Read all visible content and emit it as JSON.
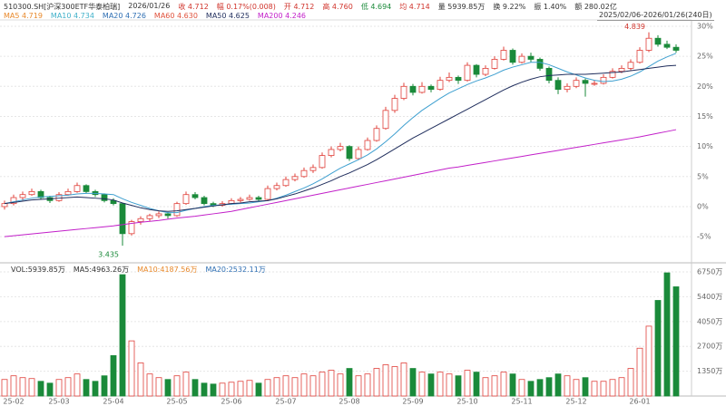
{
  "header": [
    {
      "text": "510300.SH[沪深300ETF华泰柏瑞]",
      "color": "#333333"
    },
    {
      "text": "2026/01/26",
      "color": "#333333"
    },
    {
      "text": "收 4.712",
      "color": "#d0342c"
    },
    {
      "text": "幅 0.17%(0.008)",
      "color": "#d0342c"
    },
    {
      "text": "开 4.712",
      "color": "#d0342c"
    },
    {
      "text": "高 4.760",
      "color": "#d0342c"
    },
    {
      "text": "低 4.694",
      "color": "#1a8a3a"
    },
    {
      "text": "均 4.714",
      "color": "#d0342c"
    },
    {
      "text": "量 5939.85万",
      "color": "#333333"
    },
    {
      "text": "换 9.22%",
      "color": "#333333"
    },
    {
      "text": "振 1.40%",
      "color": "#333333"
    },
    {
      "text": "额 280.02亿",
      "color": "#333333"
    }
  ],
  "ma_legend": [
    {
      "text": "MA5 4.719",
      "color": "#e8892b"
    },
    {
      "text": "MA10 4.734",
      "color": "#3fb0c9"
    },
    {
      "text": "MA20 4.726",
      "color": "#2f6fb3"
    },
    {
      "text": "MA60 4.630",
      "color": "#e0523c"
    },
    {
      "text": "MA50 4.625",
      "color": "#1f2d5c"
    },
    {
      "text": "MA200 4.246",
      "color": "#c21fc9"
    }
  ],
  "range_label": "2025/02/06-2026/01/26(240日)",
  "vol_legend": [
    {
      "text": "VOL:5939.85万",
      "color": "#333333"
    },
    {
      "text": "MA5:4963.26万",
      "color": "#333333"
    },
    {
      "text": "MA10:4187.56万",
      "color": "#e8892b"
    },
    {
      "text": "MA20:2532.11万",
      "color": "#2f6fb3"
    }
  ],
  "chart_data": {
    "type": "candlestick",
    "up_color": "#e0403a",
    "down_color": "#1a8a3a",
    "categories": [
      null,
      "25-02",
      null,
      null,
      null,
      null,
      "25-03",
      null,
      null,
      null,
      null,
      null,
      "25-04",
      null,
      null,
      null,
      null,
      null,
      null,
      "25-05",
      null,
      null,
      null,
      null,
      null,
      "25-06",
      null,
      null,
      null,
      null,
      null,
      "25-07",
      null,
      null,
      null,
      null,
      null,
      null,
      "25-08",
      null,
      null,
      null,
      null,
      null,
      null,
      "25-09",
      null,
      null,
      null,
      null,
      null,
      "25-10",
      null,
      null,
      null,
      null,
      null,
      "25-11",
      null,
      null,
      null,
      null,
      null,
      "25-12",
      null,
      null,
      null,
      null,
      null,
      null,
      "26-01",
      null,
      null,
      null,
      null
    ],
    "candles": [
      [
        0,
        1,
        -0.5,
        0.5
      ],
      [
        0.5,
        2,
        0.2,
        1.5
      ],
      [
        1.5,
        2.5,
        1,
        2
      ],
      [
        2,
        3,
        1.8,
        2.5
      ],
      [
        2.5,
        2.8,
        1.2,
        1.5
      ],
      [
        1.5,
        1.8,
        0.6,
        1
      ],
      [
        1,
        2.4,
        0.8,
        2
      ],
      [
        2,
        3,
        1.8,
        2.5
      ],
      [
        2.5,
        4,
        2.3,
        3.5
      ],
      [
        3.5,
        3.7,
        2.2,
        2.5
      ],
      [
        2.5,
        2.8,
        1.6,
        2
      ],
      [
        2,
        2.2,
        0.7,
        1
      ],
      [
        1,
        1.4,
        0.2,
        0.5
      ],
      [
        0.5,
        0.6,
        -6.5,
        -4.5
      ],
      [
        -4.5,
        -2.2,
        -4.8,
        -2.5
      ],
      [
        -2.5,
        -1.6,
        -3,
        -2
      ],
      [
        -2,
        -1.2,
        -2.4,
        -1.5
      ],
      [
        -1.5,
        -0.8,
        -1.9,
        -1.2
      ],
      [
        -1.2,
        -0.9,
        -2,
        -1.5
      ],
      [
        -1.5,
        0.8,
        -1.7,
        0.5
      ],
      [
        0.5,
        2.5,
        0.3,
        2
      ],
      [
        2,
        2.4,
        1.2,
        1.5
      ],
      [
        1.5,
        1.8,
        0.2,
        0.5
      ],
      [
        0.5,
        0.8,
        -0.1,
        0.2
      ],
      [
        0.2,
        0.9,
        0,
        0.5
      ],
      [
        0.5,
        1.4,
        0.3,
        1
      ],
      [
        1,
        1.6,
        0.7,
        1.2
      ],
      [
        1.2,
        2,
        1,
        1.5
      ],
      [
        1.5,
        1.8,
        0.9,
        1.2
      ],
      [
        1.2,
        3.5,
        1,
        3
      ],
      [
        3,
        4,
        2.7,
        3.5
      ],
      [
        3.5,
        5,
        3.3,
        4.5
      ],
      [
        4.5,
        5.5,
        4.2,
        5
      ],
      [
        5,
        6.5,
        4.8,
        6
      ],
      [
        6,
        7,
        5.6,
        6.5
      ],
      [
        6.5,
        9,
        6.3,
        8.5
      ],
      [
        8.5,
        10,
        8.2,
        9.5
      ],
      [
        9.5,
        10.6,
        9.2,
        10
      ],
      [
        10,
        10.2,
        7.6,
        8
      ],
      [
        8,
        10,
        7.8,
        9.5
      ],
      [
        9.5,
        11.5,
        9.3,
        11
      ],
      [
        11,
        13.5,
        10.8,
        13
      ],
      [
        13,
        16.6,
        12.8,
        16
      ],
      [
        16,
        18.6,
        15.6,
        18
      ],
      [
        18,
        20.6,
        17.7,
        20
      ],
      [
        20,
        20.4,
        18.5,
        19
      ],
      [
        19,
        20.7,
        18.8,
        20
      ],
      [
        20,
        20.3,
        19,
        19.5
      ],
      [
        19.5,
        21.6,
        19.3,
        21
      ],
      [
        21,
        22.3,
        20.7,
        21.5
      ],
      [
        21.5,
        21.8,
        20.4,
        21
      ],
      [
        21,
        24,
        20.8,
        23.5
      ],
      [
        23.5,
        23.7,
        21.5,
        22
      ],
      [
        22,
        23.5,
        21.7,
        23
      ],
      [
        23,
        25,
        22.8,
        24.5
      ],
      [
        24.5,
        26.6,
        24.3,
        26
      ],
      [
        26,
        26.3,
        23.6,
        24
      ],
      [
        24,
        25.5,
        23.8,
        25
      ],
      [
        25,
        25.6,
        24,
        24.5
      ],
      [
        24.5,
        24.8,
        22.6,
        23
      ],
      [
        23,
        23.3,
        20.5,
        21
      ],
      [
        21,
        21.5,
        18.7,
        19.5
      ],
      [
        19.5,
        20.5,
        19,
        20
      ],
      [
        20,
        21.5,
        19.7,
        21
      ],
      [
        21,
        21.3,
        18.3,
        20.5
      ],
      [
        20.5,
        21,
        20.1,
        20.5
      ],
      [
        20.5,
        22,
        20.3,
        21.5
      ],
      [
        21.5,
        23,
        21.3,
        22.5
      ],
      [
        22.5,
        23.5,
        22.2,
        23
      ],
      [
        23,
        24.5,
        22.7,
        24
      ],
      [
        24,
        26.5,
        23.8,
        26
      ],
      [
        26,
        29,
        25.7,
        28
      ],
      [
        28,
        28.5,
        26.6,
        27
      ],
      [
        27,
        27.6,
        26.2,
        26.5
      ],
      [
        26.5,
        27,
        25.6,
        26
      ]
    ],
    "series": [
      {
        "name": "MA20",
        "color": "#3fa0d0",
        "values": [
          0.5,
          0.8,
          1.1,
          1.4,
          1.6,
          1.7,
          1.8,
          1.9,
          2.1,
          2.2,
          2.2,
          2.1,
          2.0,
          1.3,
          0.7,
          0.2,
          -0.3,
          -0.7,
          -1.0,
          -1.0,
          -0.6,
          -0.3,
          0,
          0.2,
          0.3,
          0.4,
          0.5,
          0.6,
          0.8,
          1.0,
          1.4,
          1.9,
          2.5,
          3.1,
          3.8,
          4.6,
          5.5,
          6.4,
          7.1,
          7.8,
          8.6,
          9.6,
          10.8,
          12.1,
          13.5,
          14.8,
          16.0,
          17.0,
          18.0,
          18.9,
          19.6,
          20.3,
          20.9,
          21.4,
          22.0,
          22.7,
          23.2,
          23.6,
          24.0,
          24.0,
          23.6,
          23.0,
          22.4,
          21.9,
          21.4,
          21.0,
          20.8,
          20.9,
          21.2,
          21.7,
          22.4,
          23.3,
          24.2,
          24.9,
          25.5
        ]
      },
      {
        "name": "MA50",
        "color": "#1f2d5c",
        "values": [
          0.5,
          0.7,
          0.9,
          1.1,
          1.2,
          1.3,
          1.4,
          1.5,
          1.6,
          1.5,
          1.4,
          1.3,
          1.1,
          0.6,
          0.2,
          -0.2,
          -0.5,
          -0.7,
          -0.8,
          -0.7,
          -0.5,
          -0.3,
          -0.1,
          0.1,
          0.3,
          0.5,
          0.6,
          0.8,
          0.9,
          1.0,
          1.3,
          1.7,
          2.1,
          2.6,
          3.1,
          3.7,
          4.3,
          5.0,
          5.6,
          6.3,
          7.0,
          7.8,
          8.7,
          9.6,
          10.5,
          11.4,
          12.2,
          13.0,
          13.8,
          14.6,
          15.4,
          16.2,
          17.0,
          17.8,
          18.6,
          19.4,
          20.1,
          20.7,
          21.2,
          21.6,
          21.8,
          21.9,
          22.0,
          22.0,
          22.0,
          22.1,
          22.2,
          22.3,
          22.4,
          22.6,
          22.8,
          23.0,
          23.2,
          23.4,
          23.5
        ]
      },
      {
        "name": "MA200",
        "color": "#c21fc9",
        "values": [
          -5,
          -4.85,
          -4.7,
          -4.55,
          -4.4,
          -4.25,
          -4.1,
          -3.95,
          -3.8,
          -3.65,
          -3.5,
          -3.35,
          -3.2,
          -3.0,
          -2.8,
          -2.6,
          -2.45,
          -2.3,
          -2.1,
          -1.9,
          -1.75,
          -1.6,
          -1.4,
          -1.2,
          -1.0,
          -0.8,
          -0.5,
          -0.2,
          0.1,
          0.4,
          0.7,
          1.0,
          1.3,
          1.6,
          1.9,
          2.2,
          2.5,
          2.8,
          3.1,
          3.4,
          3.7,
          4.0,
          4.3,
          4.6,
          4.9,
          5.2,
          5.5,
          5.8,
          6.1,
          6.4,
          6.6,
          6.85,
          7.1,
          7.35,
          7.6,
          7.85,
          8.1,
          8.35,
          8.6,
          8.85,
          9.1,
          9.35,
          9.6,
          9.85,
          10.1,
          10.35,
          10.6,
          10.85,
          11.1,
          11.35,
          11.6,
          11.9,
          12.2,
          12.5,
          12.8
        ]
      }
    ],
    "ylim": [
      -9.35,
      31.05
    ],
    "yticks": [
      {
        "value": -5,
        "label": "-5%"
      },
      {
        "value": 0,
        "label": "0%"
      },
      {
        "value": 5,
        "label": "5%"
      },
      {
        "value": 10,
        "label": "10%"
      },
      {
        "value": 15,
        "label": "15%"
      },
      {
        "value": 20,
        "label": "20%"
      },
      {
        "value": 25,
        "label": "25%"
      },
      {
        "value": 30,
        "label": "30%"
      }
    ],
    "annotations": [
      {
        "text": "4.839",
        "candle": 71
      },
      {
        "text": "3.435",
        "candle": 13
      }
    ],
    "volume": [
      900,
      1100,
      1000,
      950,
      800,
      700,
      900,
      1000,
      1200,
      900,
      800,
      1100,
      2200,
      6600,
      3000,
      1800,
      1200,
      1000,
      900,
      1100,
      1300,
      900,
      700,
      650,
      700,
      750,
      800,
      850,
      700,
      900,
      1000,
      1100,
      1000,
      1200,
      1100,
      1300,
      1400,
      1200,
      1500,
      1100,
      1200,
      1500,
      1700,
      1600,
      1800,
      1500,
      1300,
      1200,
      1300,
      1200,
      1100,
      1400,
      1300,
      1000,
      1100,
      1300,
      1200,
      900,
      800,
      900,
      1000,
      1200,
      1100,
      900,
      1000,
      800,
      800,
      900,
      1000,
      1500,
      2600,
      3800,
      5200,
      6700,
      5940
    ],
    "vlim": [
      0,
      6900
    ],
    "vticks": [
      {
        "value": 1350,
        "label": "1350万"
      },
      {
        "value": 2700,
        "label": "2700万"
      },
      {
        "value": 4050,
        "label": "4050万"
      },
      {
        "value": 5400,
        "label": "5400万"
      },
      {
        "value": 6750,
        "label": "6750万"
      }
    ],
    "grid": true
  }
}
